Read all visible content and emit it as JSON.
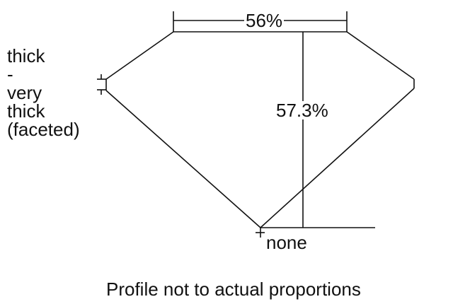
{
  "labels": {
    "girdle": "thick - very thick (faceted)",
    "girdle_lines": [
      "thick",
      "-",
      "very",
      "thick",
      "(faceted)"
    ],
    "table": "56%",
    "depth": "57.3%",
    "culet": "none",
    "note": "Profile not to actual proportions"
  },
  "colors": {
    "line": "#111111",
    "background": "#ffffff"
  }
}
